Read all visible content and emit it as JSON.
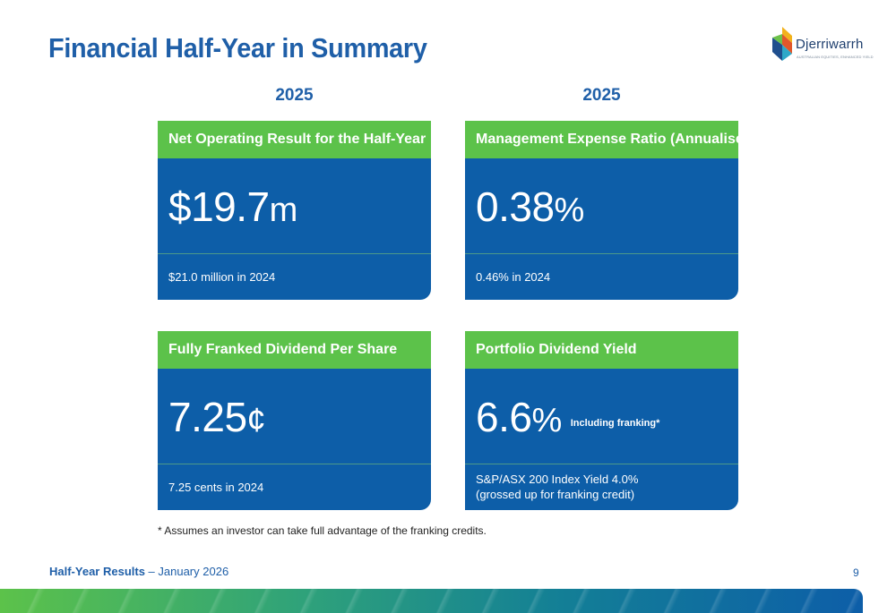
{
  "header": {
    "title": "Financial Half-Year in Summary",
    "logo_name": "Djerriwarrh",
    "logo_tagline": "AUSTRALIAN EQUITIES, ENHANCED YIELD"
  },
  "years": [
    "2025",
    "2025"
  ],
  "cards": [
    {
      "heading": "Net Operating Result for the Half-Year",
      "value": "$19.7",
      "unit": "m",
      "note": "",
      "comparison": "$21.0 million in 2024",
      "comparison_line2": ""
    },
    {
      "heading": "Management Expense Ratio (Annualised)",
      "value": "0.38",
      "unit": "%",
      "note": "",
      "comparison": "0.46% in 2024",
      "comparison_line2": ""
    },
    {
      "heading": "Fully Franked Dividend Per Share",
      "value": "7.25",
      "unit": "¢",
      "note": "",
      "comparison": "7.25 cents in 2024",
      "comparison_line2": ""
    },
    {
      "heading": "Portfolio Dividend Yield",
      "value": "6.6",
      "unit": "%",
      "note": "Including franking*",
      "comparison": "S&P/ASX 200 Index Yield 4.0%",
      "comparison_line2": "(grossed up for franking credit)"
    }
  ],
  "footnote": "* Assumes an investor can take full advantage of the franking credits.",
  "footer": {
    "label": "Half-Year Results",
    "date": " – January 2026",
    "page": "9"
  },
  "colors": {
    "primary_blue": "#1f5fa8",
    "card_blue": "#0d5ea8",
    "card_green": "#5cc24a"
  }
}
